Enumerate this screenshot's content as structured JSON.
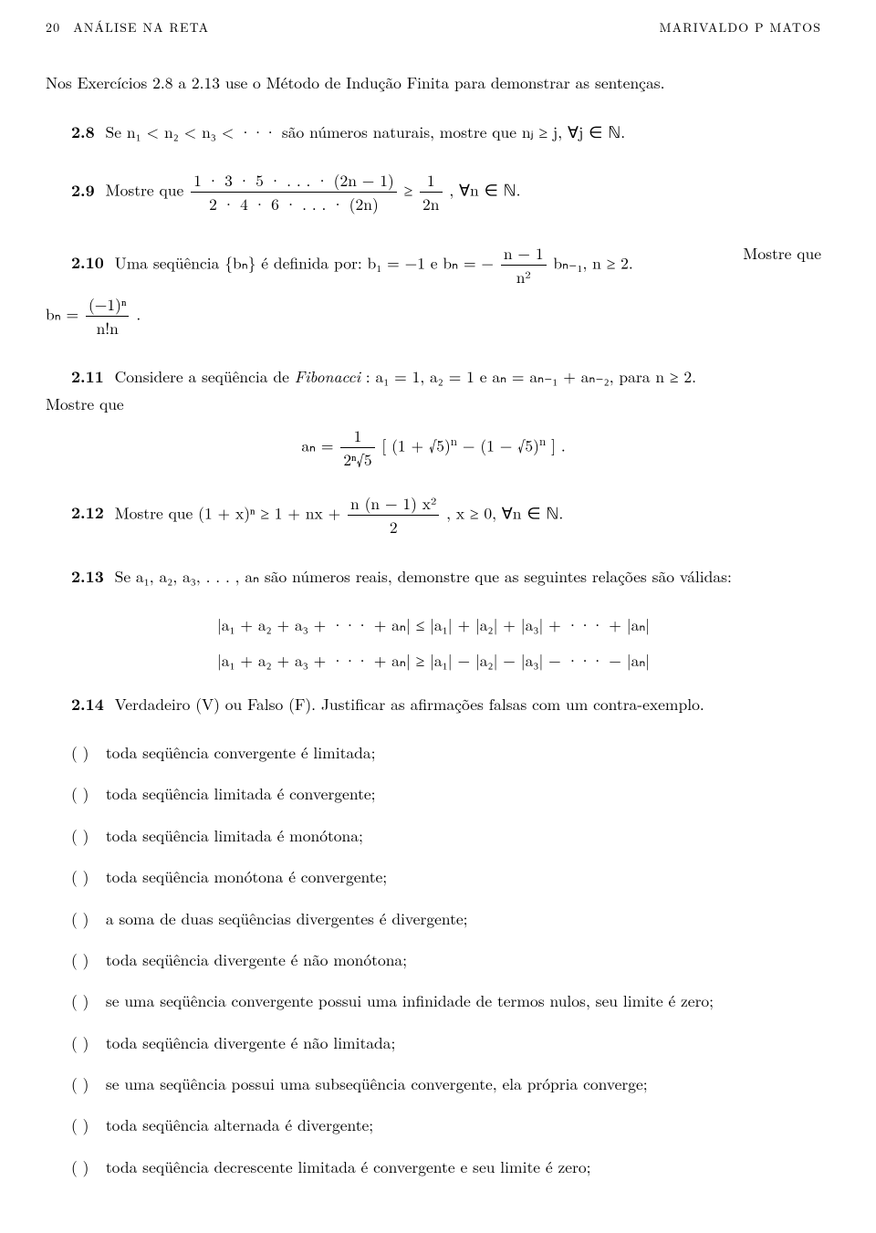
{
  "header": {
    "page_number": "20",
    "title": "ANÁLISE NA RETA",
    "author": "MARIVALDO P MATOS"
  },
  "intro": "Nos Exercícios 2.8 a 2.13 use o Método de Indução Finita para demonstrar as sentenças.",
  "ex28": {
    "num": "2.8",
    "text_a": "Se ",
    "math": "n₁ < n₂ < n₃ < ···",
    "text_b": " são números naturais, mostre que ",
    "tail": "nⱼ ≥ j, ∀j ∈ ℕ."
  },
  "ex29": {
    "num": "2.9",
    "text_a": "Mostre que ",
    "frac_num": "1 · 3 · 5 · . . . · (2n − 1)",
    "frac_den": "2 · 4 · 6 · . . . · (2n)",
    "geq": " ≥ ",
    "rfrac_num": "1",
    "rfrac_den": "2n",
    "tail": ", ∀n ∈ ℕ."
  },
  "ex210": {
    "num": "2.10",
    "text_a": "Uma seqüência {bₙ} é definida por: b₁ = −1 e bₙ = −",
    "frac_num": "n − 1",
    "frac_den": "n²",
    "frac_tail": "bₙ₋₁,  n ≥ 2.",
    "text_b": "Mostre que",
    "line2_a": "bₙ = ",
    "l2_frac_num": "(−1)ⁿ",
    "l2_frac_den": "n!n",
    "l2_tail": "."
  },
  "ex211": {
    "num": "2.11",
    "text_a": "Considere a seqüência de ",
    "fib": "Fibonacci",
    "text_b": ": a₁ = 1, a₂ = 1 e aₙ = aₙ₋₁ + aₙ₋₂, para n ≥ 2.",
    "mostre": "Mostre que",
    "eq_lhs": "aₙ = ",
    "eq_frac_num": "1",
    "eq_frac_den": "2ⁿ√5",
    "eq_body_open": " [ (1 + √5)",
    "eq_body_mid": " − (1 − √5)",
    "eq_body_close": " ]",
    "eq_tail": "."
  },
  "ex212": {
    "num": "2.12",
    "text_a": "Mostre que (1 + x)ⁿ ≥ 1 + nx + ",
    "frac_num": "n (n − 1) x²",
    "frac_den": "2",
    "tail": ",  x ≥ 0,  ∀n ∈ ℕ."
  },
  "ex213": {
    "num": "2.13",
    "text_a": "Se a₁, a₂, a₃, . . . , aₙ são números reais, demonstre que as seguintes relações são válidas:",
    "ineq1": "|a₁ + a₂ + a₃ + ··· + aₙ| ≤ |a₁| + |a₂| + |a₃| + ··· + |aₙ|",
    "ineq2": "|a₁ + a₂ + a₃ + ··· + aₙ| ≥ |a₁| − |a₂| − |a₃| − ··· − |aₙ|"
  },
  "ex214": {
    "num": "2.14",
    "text": "Verdadeiro (V) ou Falso (F). Justificar as afirmações falsas com um contra-exemplo."
  },
  "vf_items": [
    "toda seqüência convergente é limitada;",
    "toda seqüência limitada é convergente;",
    "toda seqüência limitada é monótona;",
    "toda seqüência monótona é convergente;",
    "a soma de duas seqüências divergentes é divergente;",
    "toda seqüência divergente é não monótona;",
    "se uma seqüência convergente possui uma infinidade de termos nulos, seu limite é zero;",
    "toda seqüência divergente é não limitada;",
    "se uma seqüência possui uma subseqüência convergente, ela própria converge;",
    "toda seqüência alternada é divergente;",
    "toda seqüência decrescente limitada é convergente e seu limite é zero;"
  ],
  "vf_paren": "(   )"
}
